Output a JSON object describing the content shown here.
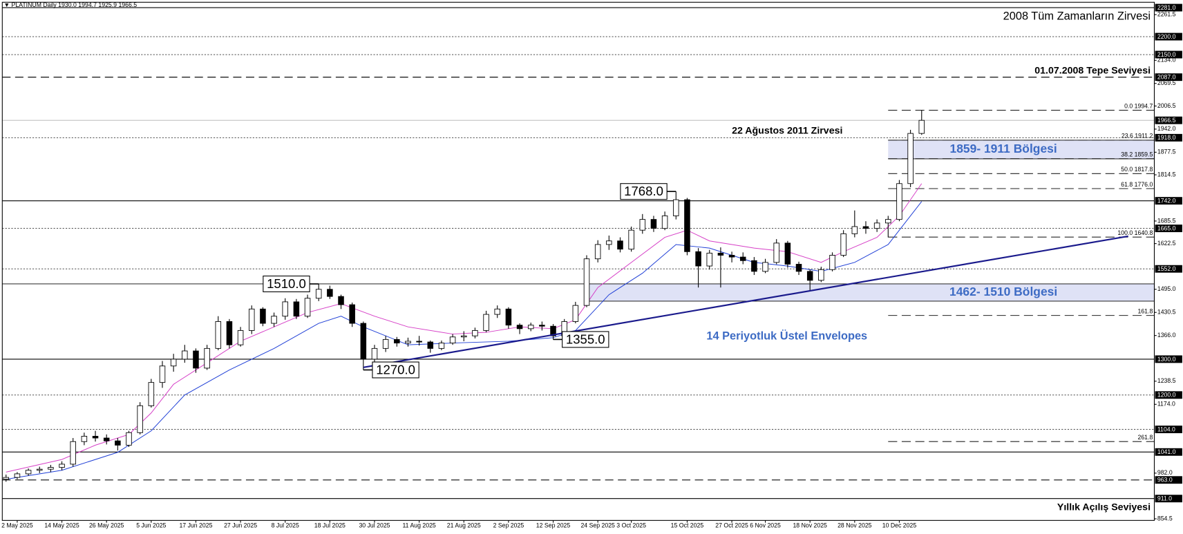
{
  "chart_data": {
    "type": "candlestick",
    "title": "▼ PLATINUM Daily  1930.0 1994.7 1925.9 1966.5",
    "categories": [
      null,
      "2 May 2025",
      null,
      null,
      null,
      "14 May 2025",
      null,
      null,
      null,
      "26 May 2025",
      null,
      null,
      null,
      "5 Jun 2025",
      null,
      null,
      null,
      "17 Jun 2025",
      null,
      null,
      null,
      "27 Jun 2025",
      null,
      null,
      null,
      "8 Jul 2025",
      null,
      null,
      null,
      "18 Jul 2025",
      null,
      null,
      null,
      "30 Jul 2025",
      null,
      null,
      null,
      "11 Aug 2025",
      null,
      null,
      null,
      "21 Aug 2025",
      null,
      null,
      null,
      "2 Sep 2025",
      null,
      null,
      null,
      "12 Sep 2025",
      null,
      null,
      null,
      "24 Sep 2025",
      null,
      null,
      "3 Oct 2025",
      null,
      null,
      null,
      null,
      "15 Oct 2025",
      null,
      null,
      null,
      "27 Oct 2025",
      null,
      null,
      "6 Nov 2025",
      null,
      null,
      null,
      "18 Nov 2025",
      null,
      null,
      null,
      "28 Nov 2025",
      null,
      null,
      null,
      "10 Dec 2025",
      null,
      null
    ],
    "ohlc": [
      [
        965,
        978,
        958,
        970
      ],
      [
        970,
        985,
        965,
        980
      ],
      [
        980,
        995,
        975,
        990
      ],
      [
        990,
        1000,
        982,
        993
      ],
      [
        993,
        1005,
        985,
        998
      ],
      [
        998,
        1015,
        990,
        1007
      ],
      [
        1007,
        1080,
        1000,
        1070
      ],
      [
        1070,
        1095,
        1060,
        1085
      ],
      [
        1085,
        1100,
        1070,
        1080
      ],
      [
        1080,
        1090,
        1062,
        1072
      ],
      [
        1072,
        1080,
        1045,
        1060
      ],
      [
        1060,
        1100,
        1055,
        1095
      ],
      [
        1095,
        1180,
        1090,
        1170
      ],
      [
        1170,
        1245,
        1165,
        1235
      ],
      [
        1235,
        1295,
        1220,
        1281
      ],
      [
        1281,
        1315,
        1265,
        1300
      ],
      [
        1300,
        1340,
        1290,
        1323
      ],
      [
        1323,
        1330,
        1262,
        1275
      ],
      [
        1275,
        1340,
        1270,
        1330
      ],
      [
        1330,
        1420,
        1325,
        1405
      ],
      [
        1405,
        1412,
        1330,
        1340
      ],
      [
        1340,
        1390,
        1335,
        1380
      ],
      [
        1380,
        1450,
        1370,
        1440
      ],
      [
        1440,
        1445,
        1392,
        1400
      ],
      [
        1400,
        1430,
        1390,
        1420
      ],
      [
        1420,
        1470,
        1410,
        1460
      ],
      [
        1460,
        1468,
        1412,
        1420
      ],
      [
        1420,
        1480,
        1415,
        1470
      ],
      [
        1470,
        1510,
        1462,
        1495
      ],
      [
        1495,
        1505,
        1468,
        1475
      ],
      [
        1475,
        1480,
        1440,
        1452
      ],
      [
        1452,
        1458,
        1390,
        1400
      ],
      [
        1400,
        1405,
        1270,
        1300
      ],
      [
        1300,
        1340,
        1285,
        1330
      ],
      [
        1330,
        1365,
        1320,
        1355
      ],
      [
        1355,
        1362,
        1335,
        1345
      ],
      [
        1345,
        1360,
        1335,
        1350
      ],
      [
        1350,
        1365,
        1338,
        1348
      ],
      [
        1348,
        1352,
        1318,
        1330
      ],
      [
        1330,
        1352,
        1325,
        1345
      ],
      [
        1345,
        1370,
        1340,
        1362
      ],
      [
        1362,
        1378,
        1350,
        1365
      ],
      [
        1365,
        1388,
        1358,
        1380
      ],
      [
        1380,
        1435,
        1375,
        1425
      ],
      [
        1425,
        1450,
        1415,
        1440
      ],
      [
        1440,
        1445,
        1385,
        1395
      ],
      [
        1395,
        1400,
        1370,
        1385
      ],
      [
        1385,
        1402,
        1378,
        1395
      ],
      [
        1395,
        1405,
        1380,
        1392
      ],
      [
        1392,
        1398,
        1355,
        1365
      ],
      [
        1365,
        1412,
        1360,
        1405
      ],
      [
        1405,
        1460,
        1400,
        1450
      ],
      [
        1450,
        1590,
        1445,
        1580
      ],
      [
        1580,
        1632,
        1570,
        1620
      ],
      [
        1620,
        1645,
        1605,
        1630
      ],
      [
        1630,
        1640,
        1598,
        1607
      ],
      [
        1607,
        1670,
        1600,
        1660
      ],
      [
        1660,
        1705,
        1650,
        1690
      ],
      [
        1690,
        1700,
        1655,
        1665
      ],
      [
        1665,
        1712,
        1660,
        1700
      ],
      [
        1700,
        1768,
        1690,
        1745
      ],
      [
        1745,
        1750,
        1590,
        1600
      ],
      [
        1600,
        1610,
        1500,
        1560
      ],
      [
        1560,
        1605,
        1550,
        1596
      ],
      [
        1596,
        1612,
        1500,
        1590
      ],
      [
        1590,
        1600,
        1570,
        1585
      ],
      [
        1585,
        1598,
        1565,
        1575
      ],
      [
        1575,
        1585,
        1535,
        1545
      ],
      [
        1545,
        1580,
        1540,
        1570
      ],
      [
        1570,
        1635,
        1565,
        1624
      ],
      [
        1624,
        1630,
        1555,
        1565
      ],
      [
        1565,
        1572,
        1535,
        1545
      ],
      [
        1545,
        1550,
        1490,
        1520
      ],
      [
        1520,
        1558,
        1515,
        1550
      ],
      [
        1550,
        1598,
        1545,
        1590
      ],
      [
        1590,
        1660,
        1585,
        1650
      ],
      [
        1650,
        1715,
        1640,
        1670
      ],
      [
        1670,
        1685,
        1650,
        1665
      ],
      [
        1665,
        1690,
        1655,
        1680
      ],
      [
        1680,
        1700,
        1640,
        1690
      ],
      [
        1690,
        1800,
        1685,
        1790
      ],
      [
        1790,
        1940,
        1780,
        1930
      ],
      [
        1930,
        1994.7,
        1925.9,
        1966.5
      ]
    ],
    "envelopes": [
      {
        "color": "#d63fc7",
        "x": [
          0,
          5,
          8,
          11,
          13,
          15,
          18,
          21,
          24,
          27,
          30,
          33,
          36,
          40,
          43,
          46,
          49,
          51,
          53,
          56,
          59,
          61,
          63,
          67,
          70,
          73,
          75,
          78,
          80,
          82
        ],
        "values": [
          985,
          1020,
          1060,
          1090,
          1150,
          1230,
          1290,
          1350,
          1390,
          1430,
          1455,
          1420,
          1390,
          1370,
          1375,
          1390,
          1385,
          1410,
          1500,
          1570,
          1640,
          1660,
          1630,
          1610,
          1600,
          1570,
          1600,
          1640,
          1700,
          1790
        ]
      },
      {
        "color": "#1f3fd6",
        "x": [
          0,
          5,
          10,
          13,
          16,
          20,
          24,
          28,
          30,
          32,
          36,
          40,
          45,
          49,
          51,
          54,
          57,
          60,
          63,
          67,
          70,
          73,
          76,
          79,
          82
        ],
        "values": [
          965,
          990,
          1040,
          1100,
          1200,
          1270,
          1330,
          1400,
          1420,
          1390,
          1340,
          1345,
          1350,
          1360,
          1380,
          1480,
          1540,
          1620,
          1610,
          1570,
          1560,
          1545,
          1570,
          1620,
          1740
        ]
      }
    ],
    "trendline": {
      "color": "#1a1a8c",
      "x": [
        32,
        100.5
      ],
      "values": [
        1277,
        1643
      ]
    },
    "ylim": [
      850,
      2296
    ],
    "yticks": [
      2261.5,
      {
        "value": 2134,
        "label": "2134.0"
      },
      2069.5,
      2006.5,
      {
        "value": 1942,
        "label": "1942.0"
      },
      1877.5,
      1814.5,
      1685.5,
      1622.5,
      {
        "value": 1495,
        "label": "1495.0"
      },
      1430.5,
      {
        "value": 1366,
        "label": "1366.0"
      },
      1238.5,
      {
        "value": 1174,
        "label": "1174.0"
      },
      {
        "value": 982,
        "label": "982.0"
      },
      854.5
    ],
    "levels": [
      {
        "value": 2281,
        "label": "2281.0",
        "style": "solid"
      },
      {
        "value": 2200,
        "label": "2200.0",
        "style": "dotted"
      },
      {
        "value": 2150,
        "label": "2150.0",
        "style": "dotted"
      },
      {
        "value": 2087,
        "label": "2087.0",
        "style": "dashed"
      },
      {
        "value": 1966.5,
        "label": "1966.5",
        "style": "gray"
      },
      {
        "value": 1918,
        "label": "1918.0",
        "style": "dotted"
      },
      {
        "value": 1742,
        "label": "1742.0",
        "style": "solid"
      },
      {
        "value": 1665,
        "label": "1665.0",
        "style": "dotted"
      },
      {
        "value": 1552,
        "label": "1552.0",
        "style": "dotted"
      },
      {
        "value": 1300,
        "label": "1300.0",
        "style": "solid"
      },
      {
        "value": 1200,
        "label": "1200.0",
        "style": "dotted"
      },
      {
        "value": 1104,
        "label": "1104.0",
        "style": "dotted"
      },
      {
        "value": 1041,
        "label": "1041.0",
        "style": "solid"
      },
      {
        "value": 963,
        "label": "963.0",
        "style": "dashed"
      },
      {
        "value": 911,
        "label": "911.0",
        "style": "solid"
      }
    ],
    "fib_start": 79,
    "fib": [
      {
        "label": "0.0 1994.7",
        "value": 1994.7
      },
      {
        "label": "23.6 1911.2",
        "value": 1911.2
      },
      {
        "label": "38.2 1859.5",
        "value": 1859.5
      },
      {
        "label": "50.0 1817.8",
        "value": 1817.8
      },
      {
        "label": "61.8 1776.0",
        "value": 1776
      },
      {
        "label": "100.0 1640.8",
        "value": 1640.8
      },
      {
        "label": "161.8",
        "value": 1422
      },
      {
        "label": "261.8",
        "value": 1070
      }
    ],
    "zones": [
      {
        "label": "1859- 1911 Bölgesi",
        "from": 1859,
        "to": 1911,
        "start": 79,
        "color": "#dfe2f6"
      },
      {
        "label": "1462- 1510 Bölgesi",
        "from": 1462,
        "to": 1510,
        "start": 52,
        "color": "#dfe2f6"
      }
    ],
    "annotations": [
      {
        "label": "1510.0",
        "value": 1510,
        "x": 28,
        "side": "left"
      },
      {
        "label": "1270.0",
        "value": 1270,
        "x": 32,
        "side": "right"
      },
      {
        "label": "1355.0",
        "value": 1355,
        "x": 49,
        "side": "right"
      },
      {
        "label": "1768.0",
        "value": 1768,
        "x": 60,
        "side": "left"
      }
    ],
    "notes": [
      "2008 Tüm Zamanların Zirvesi",
      "01.07.2008 Tepe Seviyesi",
      "22 Ağustos 2011 Zirvesi",
      "14 Periyotluk Üstel Envelopes",
      "Yıllık Açılış Seviyesi"
    ]
  }
}
